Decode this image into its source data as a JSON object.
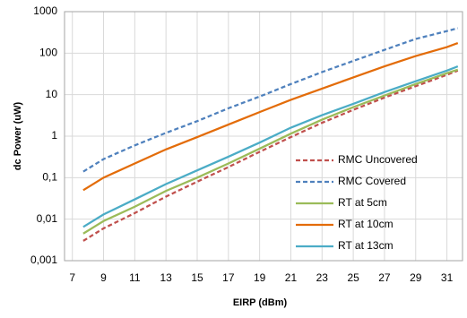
{
  "chart_data": {
    "type": "line",
    "x_label": "EIRP (dBm)",
    "y_label": "dc Power  (uW)",
    "x": [
      7.7,
      9,
      11,
      13,
      15,
      17,
      19,
      21,
      23,
      25,
      27,
      29,
      31,
      31.7
    ],
    "series": [
      {
        "name": "RMC Uncovered",
        "color": "#c0504d",
        "dashed": true,
        "values": [
          0.003,
          0.006,
          0.014,
          0.035,
          0.08,
          0.18,
          0.42,
          0.95,
          2.1,
          4.3,
          8.5,
          16,
          30,
          38
        ]
      },
      {
        "name": "RMC Covered",
        "color": "#4f81bd",
        "dashed": true,
        "values": [
          0.14,
          0.28,
          0.6,
          1.2,
          2.3,
          4.7,
          9,
          18,
          35,
          65,
          120,
          220,
          340,
          400
        ]
      },
      {
        "name": "RT at 5cm",
        "color": "#9bbb59",
        "dashed": false,
        "values": [
          0.0045,
          0.009,
          0.02,
          0.048,
          0.1,
          0.22,
          0.5,
          1.15,
          2.5,
          5,
          9.5,
          18,
          33,
          40
        ]
      },
      {
        "name": "RT at 10cm",
        "color": "#e36c09",
        "dashed": false,
        "values": [
          0.05,
          0.1,
          0.22,
          0.48,
          0.95,
          1.9,
          3.8,
          7.5,
          14,
          26,
          48,
          85,
          140,
          175
        ]
      },
      {
        "name": "RT at 13cm",
        "color": "#4bacc6",
        "dashed": false,
        "values": [
          0.0065,
          0.013,
          0.03,
          0.07,
          0.15,
          0.32,
          0.7,
          1.6,
          3.2,
          6,
          11.5,
          21,
          38,
          48
        ]
      }
    ],
    "xlim": [
      6.5,
      32
    ],
    "xticks": [
      7,
      9,
      11,
      13,
      15,
      17,
      19,
      21,
      23,
      25,
      27,
      29,
      31
    ],
    "ylim": [
      0.001,
      1000
    ],
    "ylog": true,
    "yticks": [
      {
        "value": 0.001,
        "label": "0,001"
      },
      {
        "value": 0.01,
        "label": "0,01"
      },
      {
        "value": 0.1,
        "label": "0,1"
      },
      1,
      10,
      100,
      1000
    ],
    "grid": true,
    "legend": "lower-right"
  }
}
